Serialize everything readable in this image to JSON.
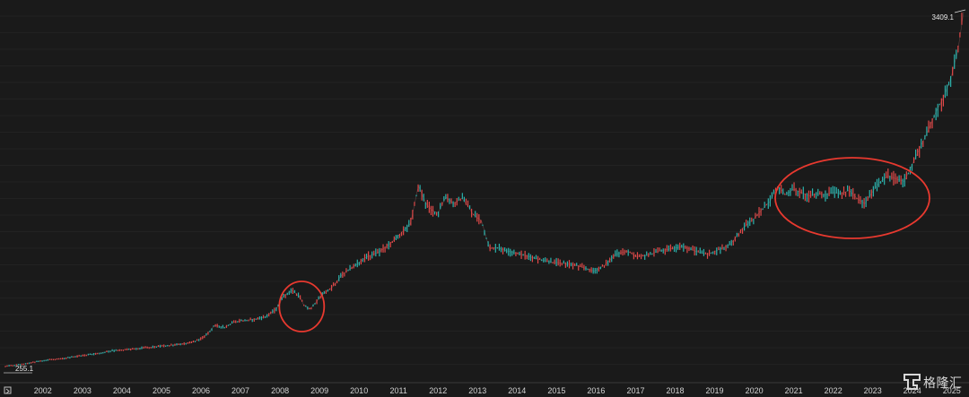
{
  "chart_data": {
    "type": "line",
    "title": "",
    "xlabel": "",
    "ylabel": "",
    "xticks": [
      "2002",
      "2003",
      "2004",
      "2005",
      "2006",
      "2007",
      "2008",
      "2009",
      "2010",
      "2011",
      "2012",
      "2013",
      "2014",
      "2015",
      "2016",
      "2017",
      "2018",
      "2019",
      "2020",
      "2021",
      "2022",
      "2023",
      "2024",
      "2025"
    ],
    "xlim": [
      2001.05,
      2025.3
    ],
    "ylim": [
      180,
      3450
    ],
    "start_label": "255.1",
    "end_label": "3409.1",
    "series": [
      {
        "x": [
          2001.05,
          2001.3,
          2001.6,
          2001.9,
          2002.2,
          2002.5,
          2002.8,
          2003.1,
          2003.4,
          2003.7,
          2004.0,
          2004.3,
          2004.6,
          2004.9,
          2005.2,
          2005.5,
          2005.8,
          2006.1,
          2006.35,
          2006.6,
          2006.8,
          2007.0,
          2007.3,
          2007.6,
          2007.9,
          2008.1,
          2008.3,
          2008.5,
          2008.6,
          2008.75,
          2008.9,
          2009.1,
          2009.3,
          2009.6,
          2009.9,
          2010.2,
          2010.5,
          2010.8,
          2011.0,
          2011.3,
          2011.5,
          2011.7,
          2011.85,
          2012.0,
          2012.2,
          2012.4,
          2012.6,
          2012.75,
          2012.9,
          2013.1,
          2013.3,
          2013.5,
          2013.75,
          2014.0,
          2014.3,
          2014.6,
          2014.9,
          2015.2,
          2015.5,
          2015.8,
          2015.95,
          2016.2,
          2016.5,
          2016.8,
          2017.0,
          2017.3,
          2017.6,
          2017.9,
          2018.2,
          2018.5,
          2018.8,
          2019.1,
          2019.4,
          2019.7,
          2020.0,
          2020.2,
          2020.4,
          2020.6,
          2020.8,
          2021.0,
          2021.2,
          2021.4,
          2021.6,
          2021.8,
          2022.0,
          2022.2,
          2022.4,
          2022.6,
          2022.8,
          2023.0,
          2023.2,
          2023.4,
          2023.6,
          2023.8,
          2024.0,
          2024.2,
          2024.4,
          2024.6,
          2024.8,
          2025.0,
          2025.15,
          2025.3
        ],
        "y": [
          255.1,
          265,
          280,
          300,
          315,
          320,
          340,
          355,
          370,
          390,
          400,
          410,
          420,
          430,
          440,
          450,
          470,
          520,
          620,
          600,
          640,
          660,
          670,
          690,
          760,
          880,
          930,
          870,
          800,
          760,
          820,
          900,
          950,
          1080,
          1150,
          1230,
          1270,
          1350,
          1420,
          1520,
          1860,
          1700,
          1640,
          1620,
          1760,
          1700,
          1750,
          1680,
          1600,
          1550,
          1300,
          1310,
          1280,
          1260,
          1230,
          1200,
          1180,
          1170,
          1150,
          1120,
          1100,
          1150,
          1250,
          1280,
          1230,
          1240,
          1280,
          1300,
          1320,
          1280,
          1250,
          1290,
          1340,
          1480,
          1570,
          1650,
          1720,
          1860,
          1780,
          1830,
          1800,
          1770,
          1790,
          1780,
          1800,
          1790,
          1820,
          1750,
          1700,
          1810,
          1900,
          1950,
          1920,
          1900,
          2050,
          2200,
          2350,
          2520,
          2650,
          2850,
          3050,
          3409.1
        ]
      }
    ],
    "annotations": [
      "circle around 2008-2009 dip",
      "ellipse around 2020-2023 consolidation"
    ],
    "grid": false,
    "legend": "none"
  },
  "watermark": {
    "logo_letter": "G",
    "text": "格隆汇"
  },
  "colors": {
    "background": "#1a1a1a",
    "up": "#e04848",
    "down": "#2ab3ad",
    "highlight": "#e8392f",
    "axis": "#bfbfbf"
  }
}
